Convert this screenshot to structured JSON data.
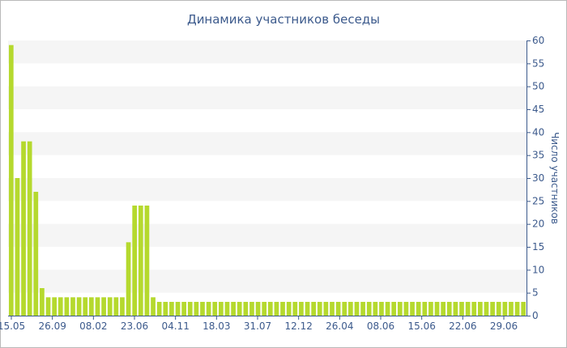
{
  "chart_data": {
    "type": "bar",
    "title": "Динамика участников беседы",
    "ylabel": "Число участников",
    "xlabel": "",
    "ylim": [
      0,
      60
    ],
    "yticks": [
      0,
      5,
      10,
      15,
      20,
      25,
      30,
      35,
      40,
      45,
      50,
      55,
      60
    ],
    "y_axis_side": "right",
    "grid": "alternating horizontal bands",
    "bar_color": "#b5d92e",
    "band_color": "#f5f5f5",
    "x_tick_labels": [
      "15.05",
      "26.09",
      "08.02",
      "23.06",
      "04.11",
      "18.03",
      "31.07",
      "12.12",
      "26.04",
      "08.06",
      "15.06",
      "22.06",
      "29.06"
    ],
    "values": [
      59,
      30,
      38,
      38,
      27,
      6,
      4,
      4,
      4,
      4,
      4,
      4,
      4,
      4,
      4,
      4,
      4,
      4,
      4,
      16,
      24,
      24,
      24,
      4,
      3,
      3,
      3,
      3,
      3,
      3,
      3,
      3,
      3,
      3,
      3,
      3,
      3,
      3,
      3,
      3,
      3,
      3,
      3,
      3,
      3,
      3,
      3,
      3,
      3,
      3,
      3,
      3,
      3,
      3,
      3,
      3,
      3,
      3,
      3,
      3,
      3,
      3,
      3,
      3,
      3,
      3,
      3,
      3,
      3,
      3,
      3,
      3,
      3,
      3,
      3,
      3,
      3,
      3,
      3,
      3,
      3,
      3,
      3,
      3
    ]
  }
}
